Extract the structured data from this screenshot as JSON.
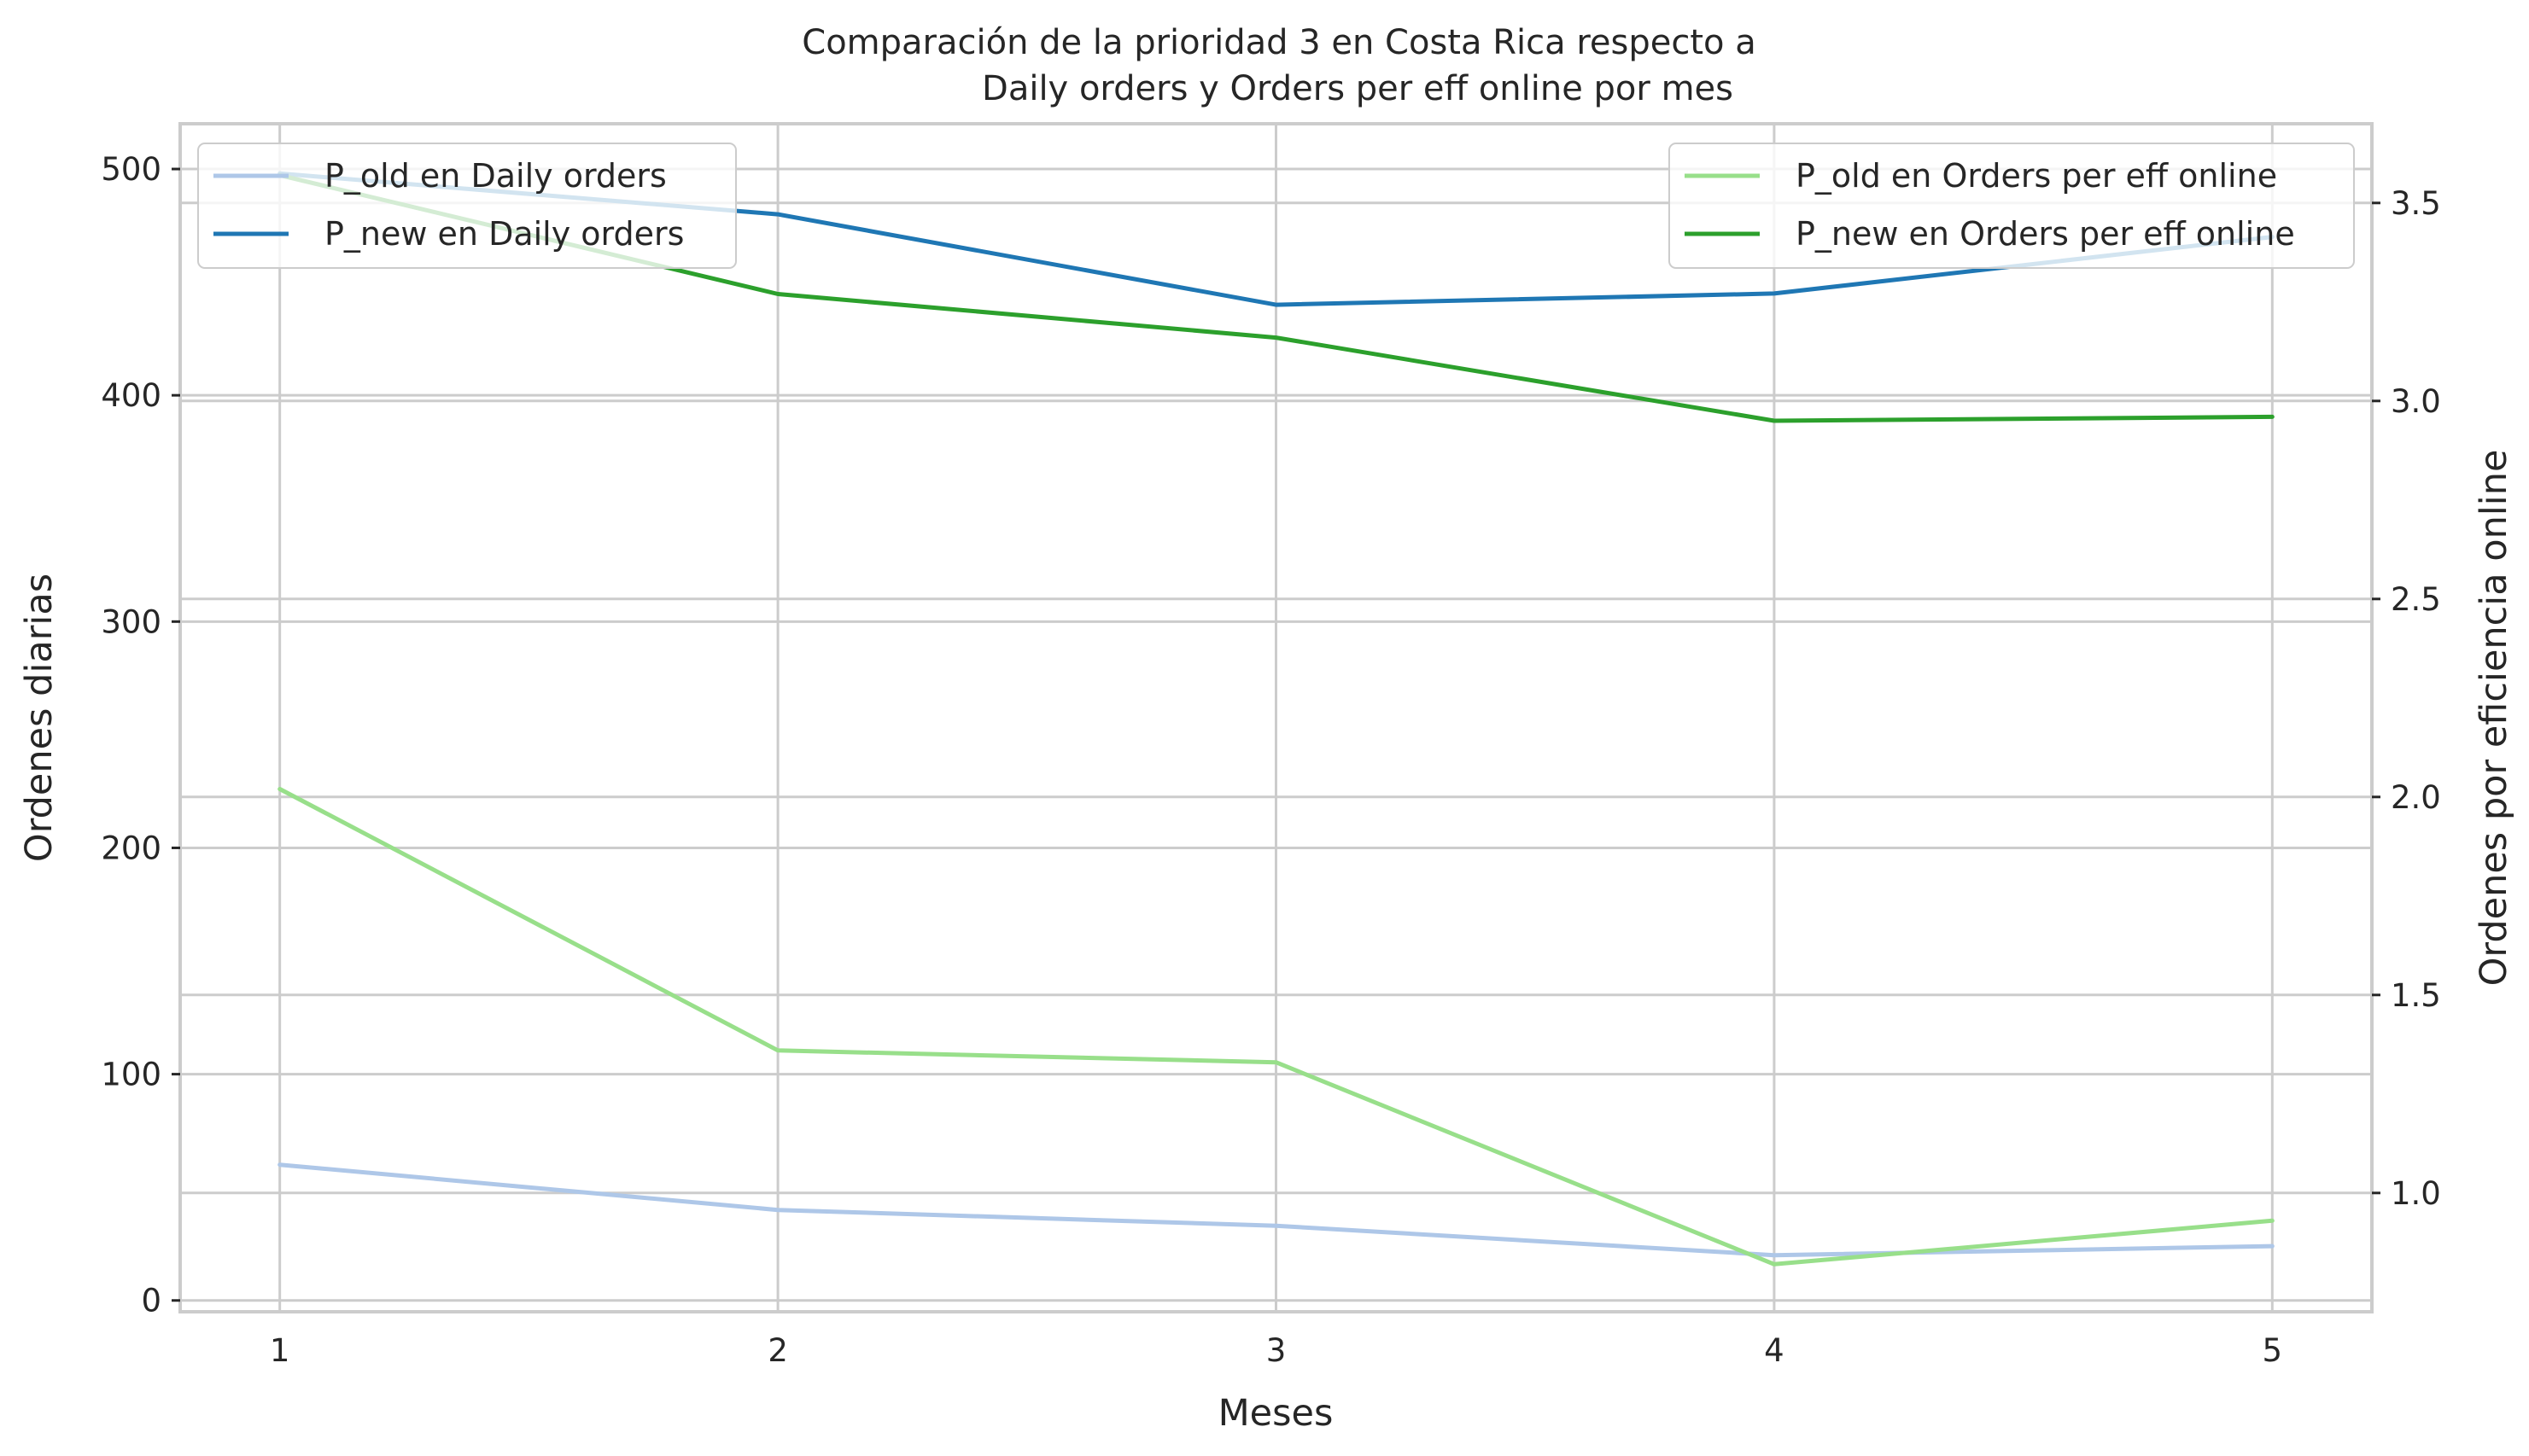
{
  "chart_data": {
    "type": "line",
    "title_line1": "Comparación de la prioridad 3 en Costa Rica respecto a",
    "title_line2": "Daily orders y Orders per eff online por mes",
    "xlabel": "Meses",
    "ylabel_left": "Ordenes diarias",
    "ylabel_right": "Ordenes por eficiencia online",
    "x": [
      1,
      2,
      3,
      4,
      5
    ],
    "x_tick_labels": [
      "1",
      "2",
      "3",
      "4",
      "5"
    ],
    "xlim": [
      0.8,
      5.2
    ],
    "left_axis": {
      "ylim": [
        -5,
        520
      ],
      "ticks": [
        0,
        100,
        200,
        300,
        400,
        500
      ],
      "tick_labels": [
        "0",
        "100",
        "200",
        "300",
        "400",
        "500"
      ]
    },
    "right_axis": {
      "ylim": [
        0.7,
        3.7
      ],
      "ticks": [
        1.0,
        1.5,
        2.0,
        2.5,
        3.0,
        3.5
      ],
      "tick_labels": [
        "1.0",
        "1.5",
        "2.0",
        "2.5",
        "3.0",
        "3.5"
      ]
    },
    "grid": true,
    "series": [
      {
        "name": "P_old en Daily orders",
        "axis": "left",
        "color": "#aec7e8",
        "values": [
          60,
          40,
          33,
          20,
          24
        ]
      },
      {
        "name": "P_new en Daily orders",
        "axis": "left",
        "color": "#1f77b4",
        "values": [
          498,
          480,
          440,
          445,
          470
        ]
      },
      {
        "name": "P_old en Orders per eff online",
        "axis": "right",
        "color": "#98df8a",
        "values": [
          2.02,
          1.36,
          1.33,
          0.82,
          0.93
        ]
      },
      {
        "name": "P_new en Orders per eff online",
        "axis": "right",
        "color": "#2ca02c",
        "values": [
          3.57,
          3.27,
          3.16,
          2.95,
          2.96
        ]
      }
    ],
    "legends": [
      {
        "placement": "upper-left",
        "entries": [
          "P_old en Daily orders",
          "P_new en Daily orders"
        ]
      },
      {
        "placement": "upper-right",
        "entries": [
          "P_old en Orders per eff online",
          "P_new en Orders per eff online"
        ]
      }
    ]
  }
}
